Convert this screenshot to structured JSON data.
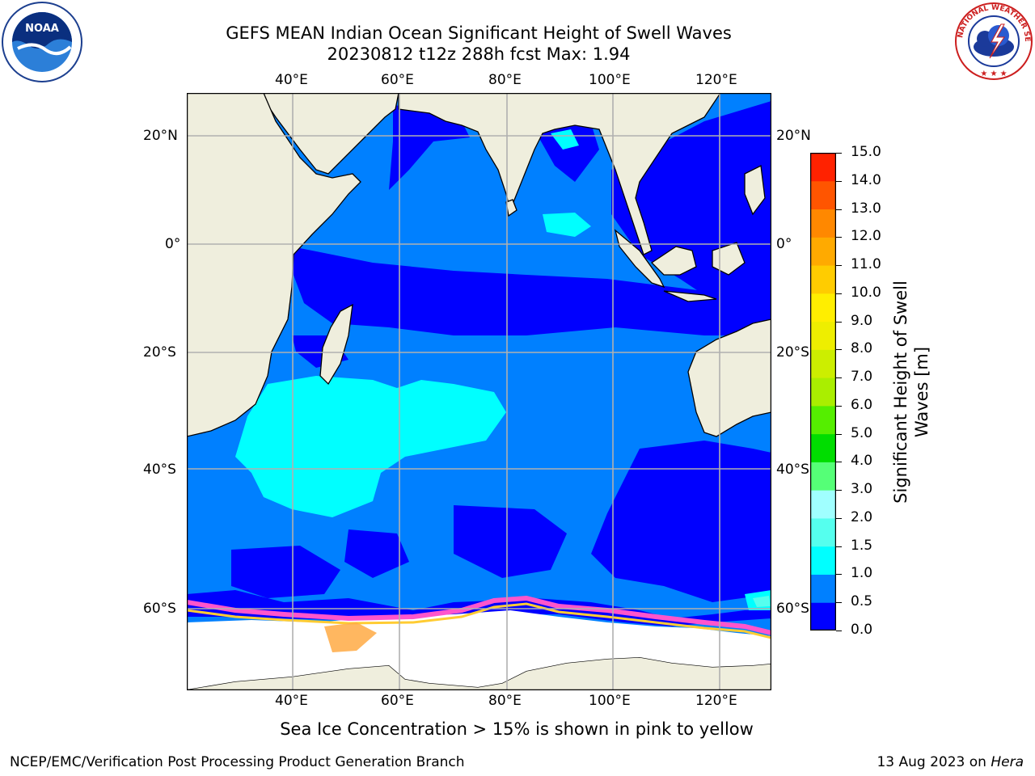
{
  "title": {
    "line1": "GEFS MEAN Indian Ocean Significant Height of Swell Waves",
    "line2": "20230812 t12z 288h fcst   Max: 1.94"
  },
  "map": {
    "lon_labels": [
      "40°E",
      "60°E",
      "80°E",
      "100°E",
      "120°E"
    ],
    "lat_labels_left": [
      "20°N",
      "0°",
      "20°S",
      "40°S",
      "60°S"
    ],
    "lat_labels_right": [
      "20°N",
      "0°",
      "20°S",
      "40°S",
      "60°S"
    ],
    "colors": {
      "land": "#efeedd",
      "swell_0_05": "#0000ff",
      "swell_05_10": "#0080ff",
      "swell_10_15": "#00ffff",
      "swell_15_20": "#55ffee",
      "ice_pink": "#ff55cc",
      "ice_yellow": "#ffcc33",
      "grid": "#b0b0b0"
    }
  },
  "colorbar": {
    "label": "Significant Height of Swell Waves [m]",
    "ticks": [
      "0.0",
      "0.5",
      "1.0",
      "1.5",
      "2.0",
      "3.0",
      "4.0",
      "5.0",
      "6.0",
      "7.0",
      "8.0",
      "9.0",
      "10.0",
      "11.0",
      "12.0",
      "13.0",
      "14.0",
      "15.0"
    ],
    "colors": [
      "#0000ff",
      "#0080ff",
      "#00ffff",
      "#55ffee",
      "#a0ffff",
      "#55ff77",
      "#00dd00",
      "#55ee00",
      "#aaee00",
      "#ccee00",
      "#eeee00",
      "#ffee00",
      "#ffcc00",
      "#ffaa00",
      "#ff8800",
      "#ff5500",
      "#ff2200"
    ]
  },
  "caption": "Sea Ice Concentration > 15% is shown in pink to yellow",
  "footer": {
    "left": "NCEP/EMC/Verification Post Processing Product Generation Branch",
    "right_date": "13 Aug 2023 on ",
    "right_host": "Hera"
  },
  "logos": {
    "noaa_text": "NOAA",
    "nws_text": "NATIONAL WEATHER SERVICE"
  }
}
